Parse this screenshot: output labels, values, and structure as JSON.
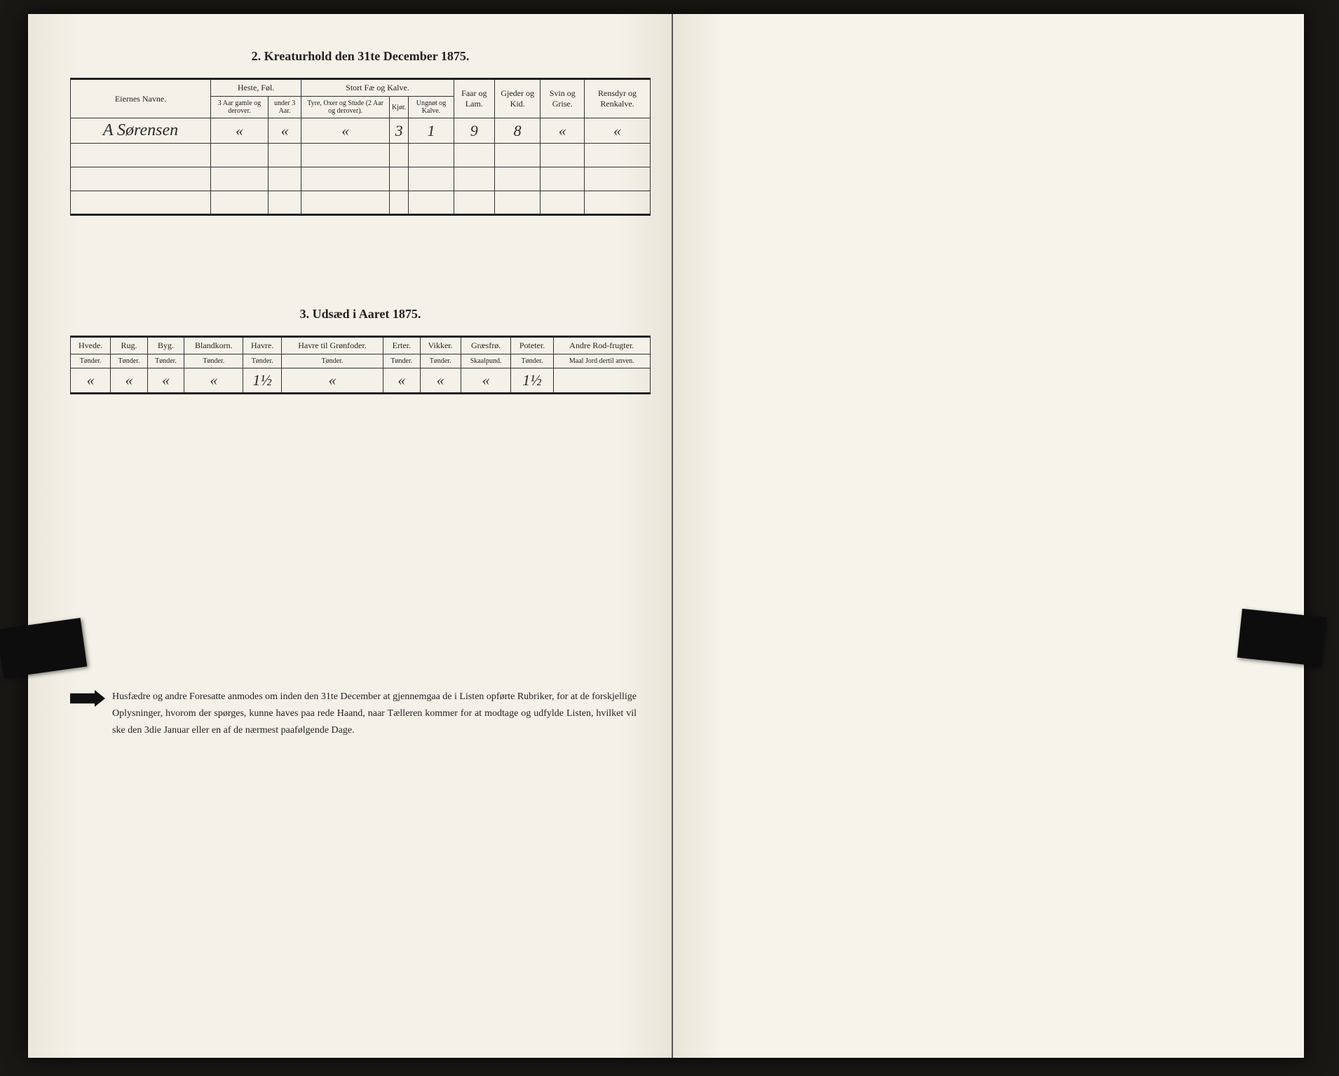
{
  "section2": {
    "title": "2. Kreaturhold den 31te December 1875.",
    "headers": {
      "name": "Eiernes Navne.",
      "horses_group": "Heste, Føl.",
      "horses_old": "3 Aar gamle og derover.",
      "horses_young": "under 3 Aar.",
      "cattle_group": "Stort Fæ og Kalve.",
      "bulls": "Tyre, Oxer og Stude (2 Aar og derover).",
      "cows": "Kjør.",
      "young_cattle": "Ungnøt og Kalve.",
      "sheep": "Faar og Lam.",
      "goats": "Gjeder og Kid.",
      "pigs": "Svin og Grise.",
      "reindeer": "Rensdyr og Renkalve."
    },
    "row": {
      "name": "A Sørensen",
      "horses_old": "«",
      "horses_young": "«",
      "bulls": "«",
      "cows": "3",
      "young_cattle": "1",
      "sheep": "9",
      "goats": "8",
      "pigs": "«",
      "reindeer": "«"
    }
  },
  "section3": {
    "title": "3. Udsæd i Aaret 1875.",
    "headers": {
      "wheat": "Hvede.",
      "rye": "Rug.",
      "barley": "Byg.",
      "mixed": "Blandkorn.",
      "oats": "Havre.",
      "green_oats": "Havre til Grønfoder.",
      "peas": "Erter.",
      "vetches": "Vikker.",
      "grass_seed": "Græsfrø.",
      "potatoes": "Poteter.",
      "other": "Andre Rod-frugter.",
      "unit_tonder": "Tønder.",
      "unit_skaalpund": "Skaalpund.",
      "unit_maal": "Maal Jord dertil anven."
    },
    "row": {
      "wheat": "«",
      "rye": "«",
      "barley": "«",
      "mixed": "«",
      "oats": "1½",
      "green_oats": "«",
      "peas": "«",
      "vetches": "«",
      "grass_seed": "«",
      "potatoes": "1½",
      "other": ""
    }
  },
  "footnote": {
    "text": "Husfædre og andre Foresatte anmodes om inden den 31te December at gjennemgaa de i Listen opførte Rubriker, for at de forskjellige Oplysninger, hvorom der spørges, kunne haves paa rede Haand, naar Tælleren kommer for at modtage og udfylde Listen, hvilket vil ske den 3die Januar eller en af de nærmest paafølgende Dage."
  },
  "colors": {
    "page_bg": "#f4f1e8",
    "ink": "#222222",
    "border": "#333333",
    "book_bg": "#1a1815"
  }
}
